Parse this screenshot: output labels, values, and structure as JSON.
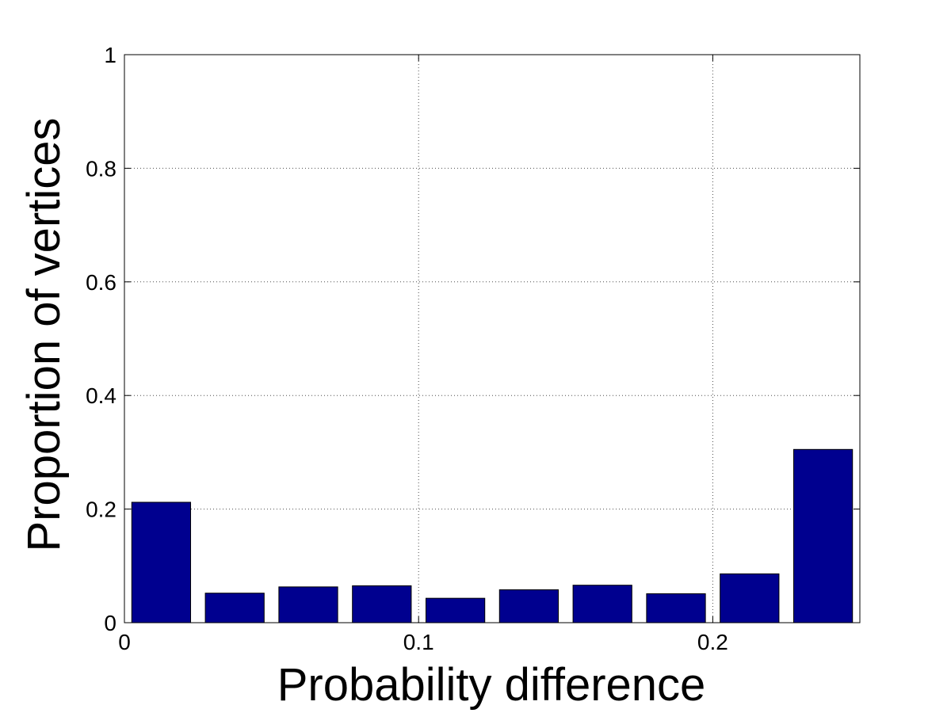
{
  "chart_data": {
    "type": "bar",
    "title": "",
    "xlabel": "Probability difference",
    "ylabel": "Proportion of vertices",
    "xlim": [
      0,
      0.25
    ],
    "ylim": [
      0,
      1
    ],
    "x": [
      0.0125,
      0.0375,
      0.0625,
      0.0875,
      0.1125,
      0.1375,
      0.1625,
      0.1875,
      0.2125,
      0.2375
    ],
    "values": [
      0.212,
      0.052,
      0.063,
      0.065,
      0.043,
      0.058,
      0.066,
      0.051,
      0.086,
      0.305
    ],
    "bar_width_fraction": 0.8,
    "x_ticks": [
      0,
      0.1,
      0.2
    ],
    "x_tick_labels": [
      "0",
      "0.1",
      "0.2"
    ],
    "y_ticks": [
      0,
      0.2,
      0.4,
      0.6,
      0.8,
      1
    ],
    "y_tick_labels": [
      "0",
      "0.2",
      "0.4",
      "0.6",
      "0.8",
      "1"
    ],
    "grid": true,
    "bar_color": "#00008f",
    "axis_color": "#000000",
    "grid_color": "#4d4d4d"
  }
}
